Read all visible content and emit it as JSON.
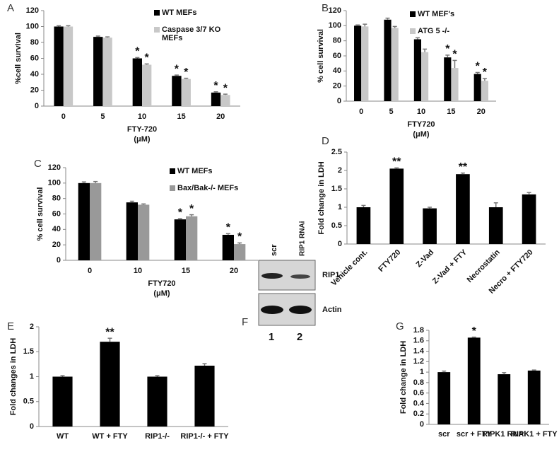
{
  "chart_data": [
    {
      "type": "bar",
      "panel": "A",
      "y_label": "%cell survival",
      "x_label": "FTY-720",
      "x_unit": "(μM)",
      "legend": true,
      "categories": [
        "0",
        "5",
        "10",
        "15",
        "20"
      ],
      "series": [
        {
          "name": "WT MEFs",
          "color": "#000000",
          "values": [
            100,
            87,
            60,
            38,
            17
          ],
          "errors": [
            1,
            1,
            1,
            1,
            1
          ],
          "marks": [
            null,
            null,
            "*",
            "*",
            "*"
          ]
        },
        {
          "name": "Caspase 3/7 KO MEFs",
          "color": "#c8c8c8",
          "values": [
            100,
            86,
            52,
            34,
            14
          ],
          "errors": [
            1,
            1,
            1,
            1,
            1
          ],
          "marks": [
            null,
            null,
            "*",
            "*",
            "*"
          ]
        }
      ],
      "ylim": [
        0,
        120
      ],
      "yticks": [
        0,
        20,
        40,
        60,
        80,
        100,
        120
      ]
    },
    {
      "type": "bar",
      "panel": "B",
      "y_label": "% cell survival",
      "x_label": "FTY720",
      "x_unit": "(μM)",
      "legend": true,
      "categories": [
        "0",
        "5",
        "10",
        "15",
        "20"
      ],
      "series": [
        {
          "name": "WT MEF's",
          "color": "#000000",
          "values": [
            100,
            108,
            82,
            58,
            36
          ],
          "errors": [
            1,
            2,
            2,
            3,
            2
          ],
          "marks": [
            null,
            null,
            null,
            "*",
            "*"
          ]
        },
        {
          "name": "ATG 5 -/-",
          "color": "#c8c8c8",
          "values": [
            99,
            97,
            65,
            44,
            27
          ],
          "errors": [
            3,
            2,
            4,
            10,
            3
          ],
          "marks": [
            null,
            null,
            null,
            "*",
            "*"
          ]
        }
      ],
      "ylim": [
        0,
        120
      ],
      "yticks": [
        0,
        20,
        40,
        60,
        80,
        100,
        120
      ]
    },
    {
      "type": "bar",
      "panel": "C",
      "y_label": "% cell survival",
      "x_label": "FTY720",
      "x_unit": "(μM)",
      "legend": true,
      "categories": [
        "0",
        "10",
        "15",
        "20"
      ],
      "series": [
        {
          "name": "WT MEFs",
          "color": "#000000",
          "values": [
            100,
            75,
            53,
            33
          ],
          "errors": [
            1.5,
            1.5,
            1,
            1.5
          ],
          "marks": [
            null,
            null,
            "*",
            "*"
          ]
        },
        {
          "name": "Bax/Bak-/- MEFs",
          "color": "#999999",
          "values": [
            100,
            72,
            57,
            21
          ],
          "errors": [
            2,
            1,
            2,
            1.5
          ],
          "marks": [
            null,
            null,
            "*",
            "*"
          ]
        }
      ],
      "ylim": [
        0,
        120
      ],
      "yticks": [
        0,
        20,
        40,
        60,
        80,
        100,
        120
      ]
    },
    {
      "type": "bar",
      "panel": "D",
      "y_label": "Fold change in LDH",
      "rotate_labels": true,
      "categories": [
        "Vehicle cont.",
        "FTY720",
        "Z-Vad",
        "Z-Vad + FTY",
        "Necrostatin",
        "Necro + FTY720"
      ],
      "series": [
        {
          "color": "#000000",
          "values": [
            1,
            2.05,
            0.97,
            1.9,
            1.0,
            1.35
          ],
          "errors": [
            0.05,
            0.02,
            0.03,
            0.03,
            0.12,
            0.05
          ],
          "marks": [
            null,
            "**",
            null,
            "**",
            null,
            null
          ]
        }
      ],
      "ylim": [
        0,
        2.5
      ],
      "yticks": [
        0,
        0.5,
        1,
        1.5,
        2,
        2.5
      ]
    },
    {
      "type": "bar",
      "panel": "E",
      "y_label": "Fold changes in LDH",
      "categories": [
        "WT",
        "WT + FTY",
        "RIP1-/-",
        "RIP1-/- + FTY"
      ],
      "series": [
        {
          "color": "#000000",
          "values": [
            1,
            1.7,
            1,
            1.22
          ],
          "errors": [
            0.02,
            0.07,
            0.02,
            0.04
          ],
          "marks": [
            null,
            "**",
            null,
            null
          ]
        }
      ],
      "ylim": [
        0,
        2
      ],
      "yticks": [
        0,
        0.5,
        1,
        1.5,
        2
      ]
    },
    {
      "type": "bar",
      "panel": "G",
      "y_label": "Fold change in LDH",
      "categories": [
        "scr",
        "scr + FTY",
        "RIPK1 RNAi",
        "RIPK1 + FTY"
      ],
      "series": [
        {
          "color": "#000000",
          "values": [
            1.0,
            1.66,
            0.96,
            1.03
          ],
          "errors": [
            0.02,
            0.01,
            0.03,
            0.01
          ],
          "marks": [
            null,
            "*",
            null,
            null
          ]
        }
      ],
      "ylim": [
        0,
        1.8
      ],
      "yticks": [
        0,
        0.2,
        0.4,
        0.6,
        0.8,
        1,
        1.2,
        1.4,
        1.6,
        1.8
      ]
    }
  ],
  "blot": {
    "panel": "F",
    "lanes": [
      "scr",
      "RIP1 RNAi"
    ],
    "bands": [
      "RIP1",
      "Actin"
    ],
    "lane_numbers": [
      "1",
      "2"
    ]
  }
}
